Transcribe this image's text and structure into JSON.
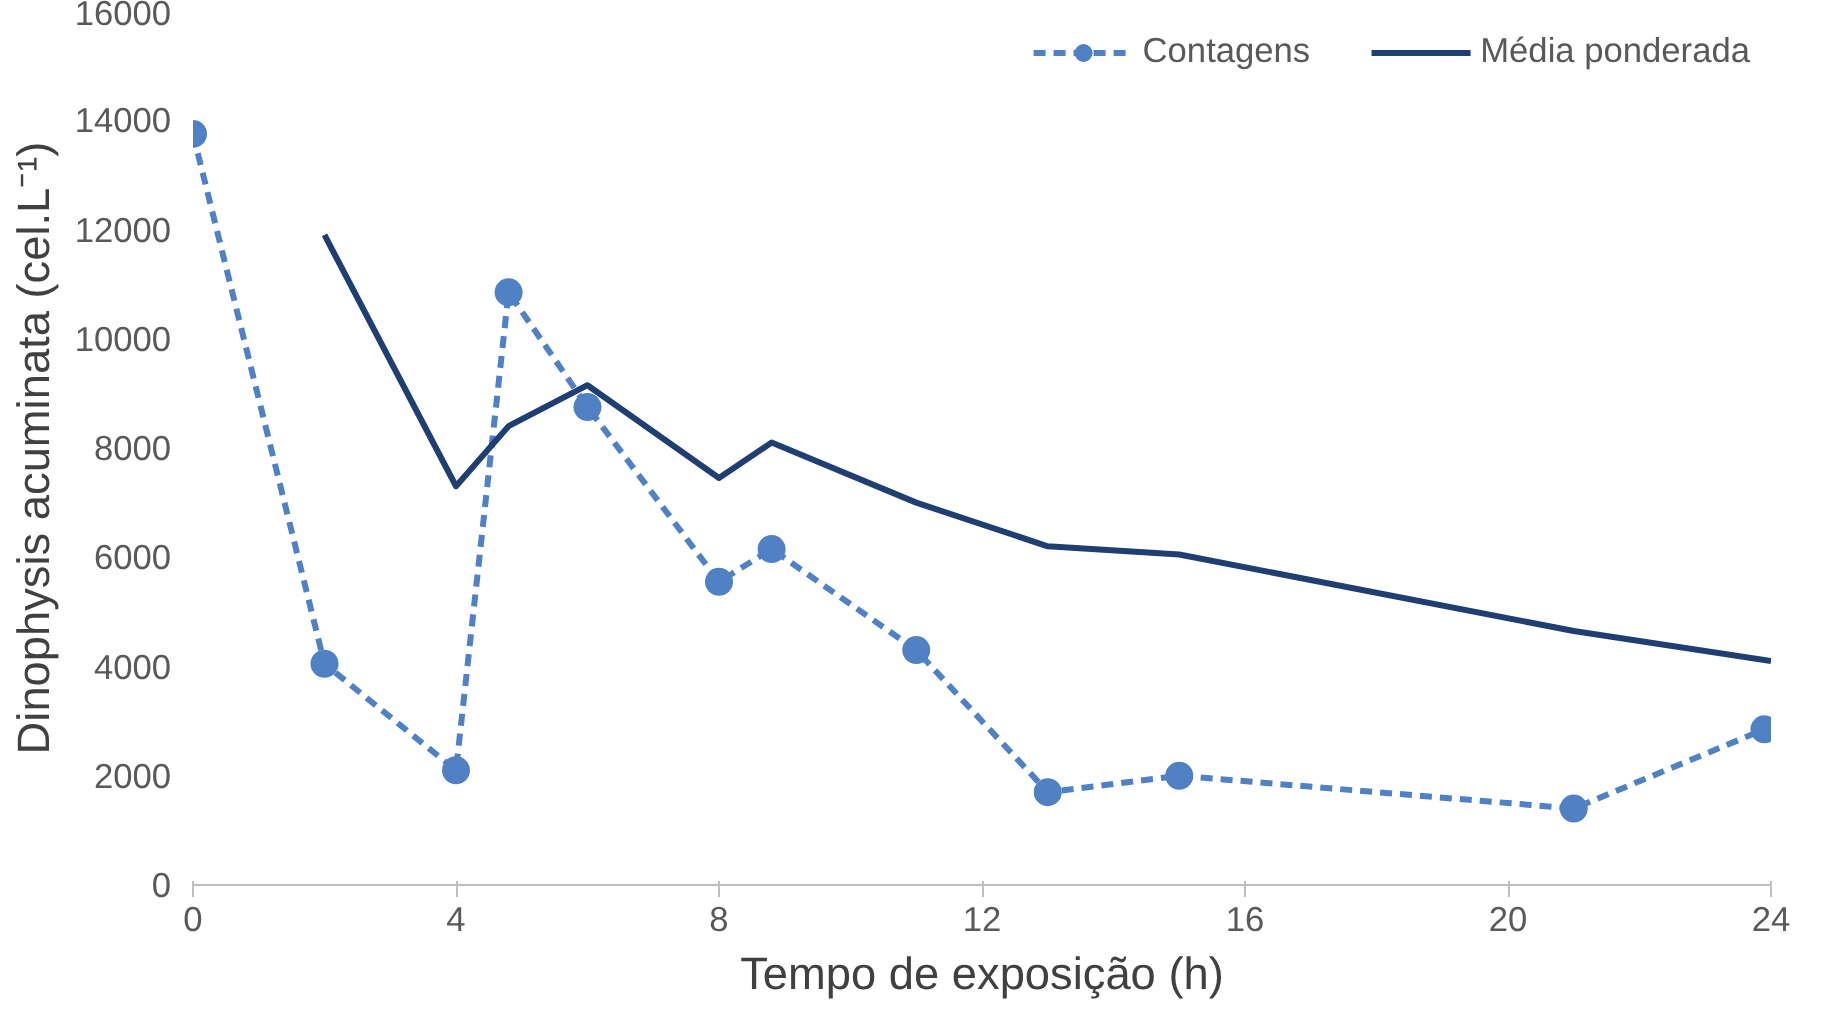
{
  "chart_data": {
    "type": "line",
    "xlabel": "Tempo de exposição (h)",
    "ylabel": "Dinophysis acuminata (cel.L⁻¹)",
    "xlim": [
      0,
      24
    ],
    "xticks": [
      0,
      4,
      8,
      12,
      16,
      20,
      24
    ],
    "ylim": [
      0,
      16000
    ],
    "yticks": [
      0,
      2000,
      4000,
      6000,
      8000,
      10000,
      12000,
      14000,
      16000
    ],
    "grid": false,
    "legend": "top right",
    "series": [
      {
        "name": "Contagens",
        "color": "#4f81c4",
        "marker": "circle",
        "line_style": "dashed",
        "x": [
          0,
          2,
          4,
          4.8,
          6,
          8,
          8.8,
          11,
          13,
          15,
          21,
          23.9
        ],
        "values": [
          13750,
          4050,
          2100,
          10850,
          8750,
          5550,
          6150,
          4300,
          1700,
          2000,
          1400,
          2850
        ]
      },
      {
        "name": "Média ponderada",
        "color": "#1f3f73",
        "marker": "none",
        "line_style": "solid",
        "x": [
          2,
          4,
          4.8,
          6,
          8,
          8.8,
          11,
          13,
          15,
          21,
          24
        ],
        "values": [
          11900,
          7300,
          8400,
          9150,
          7450,
          8100,
          7000,
          6200,
          6050,
          4650,
          4100
        ]
      }
    ]
  }
}
